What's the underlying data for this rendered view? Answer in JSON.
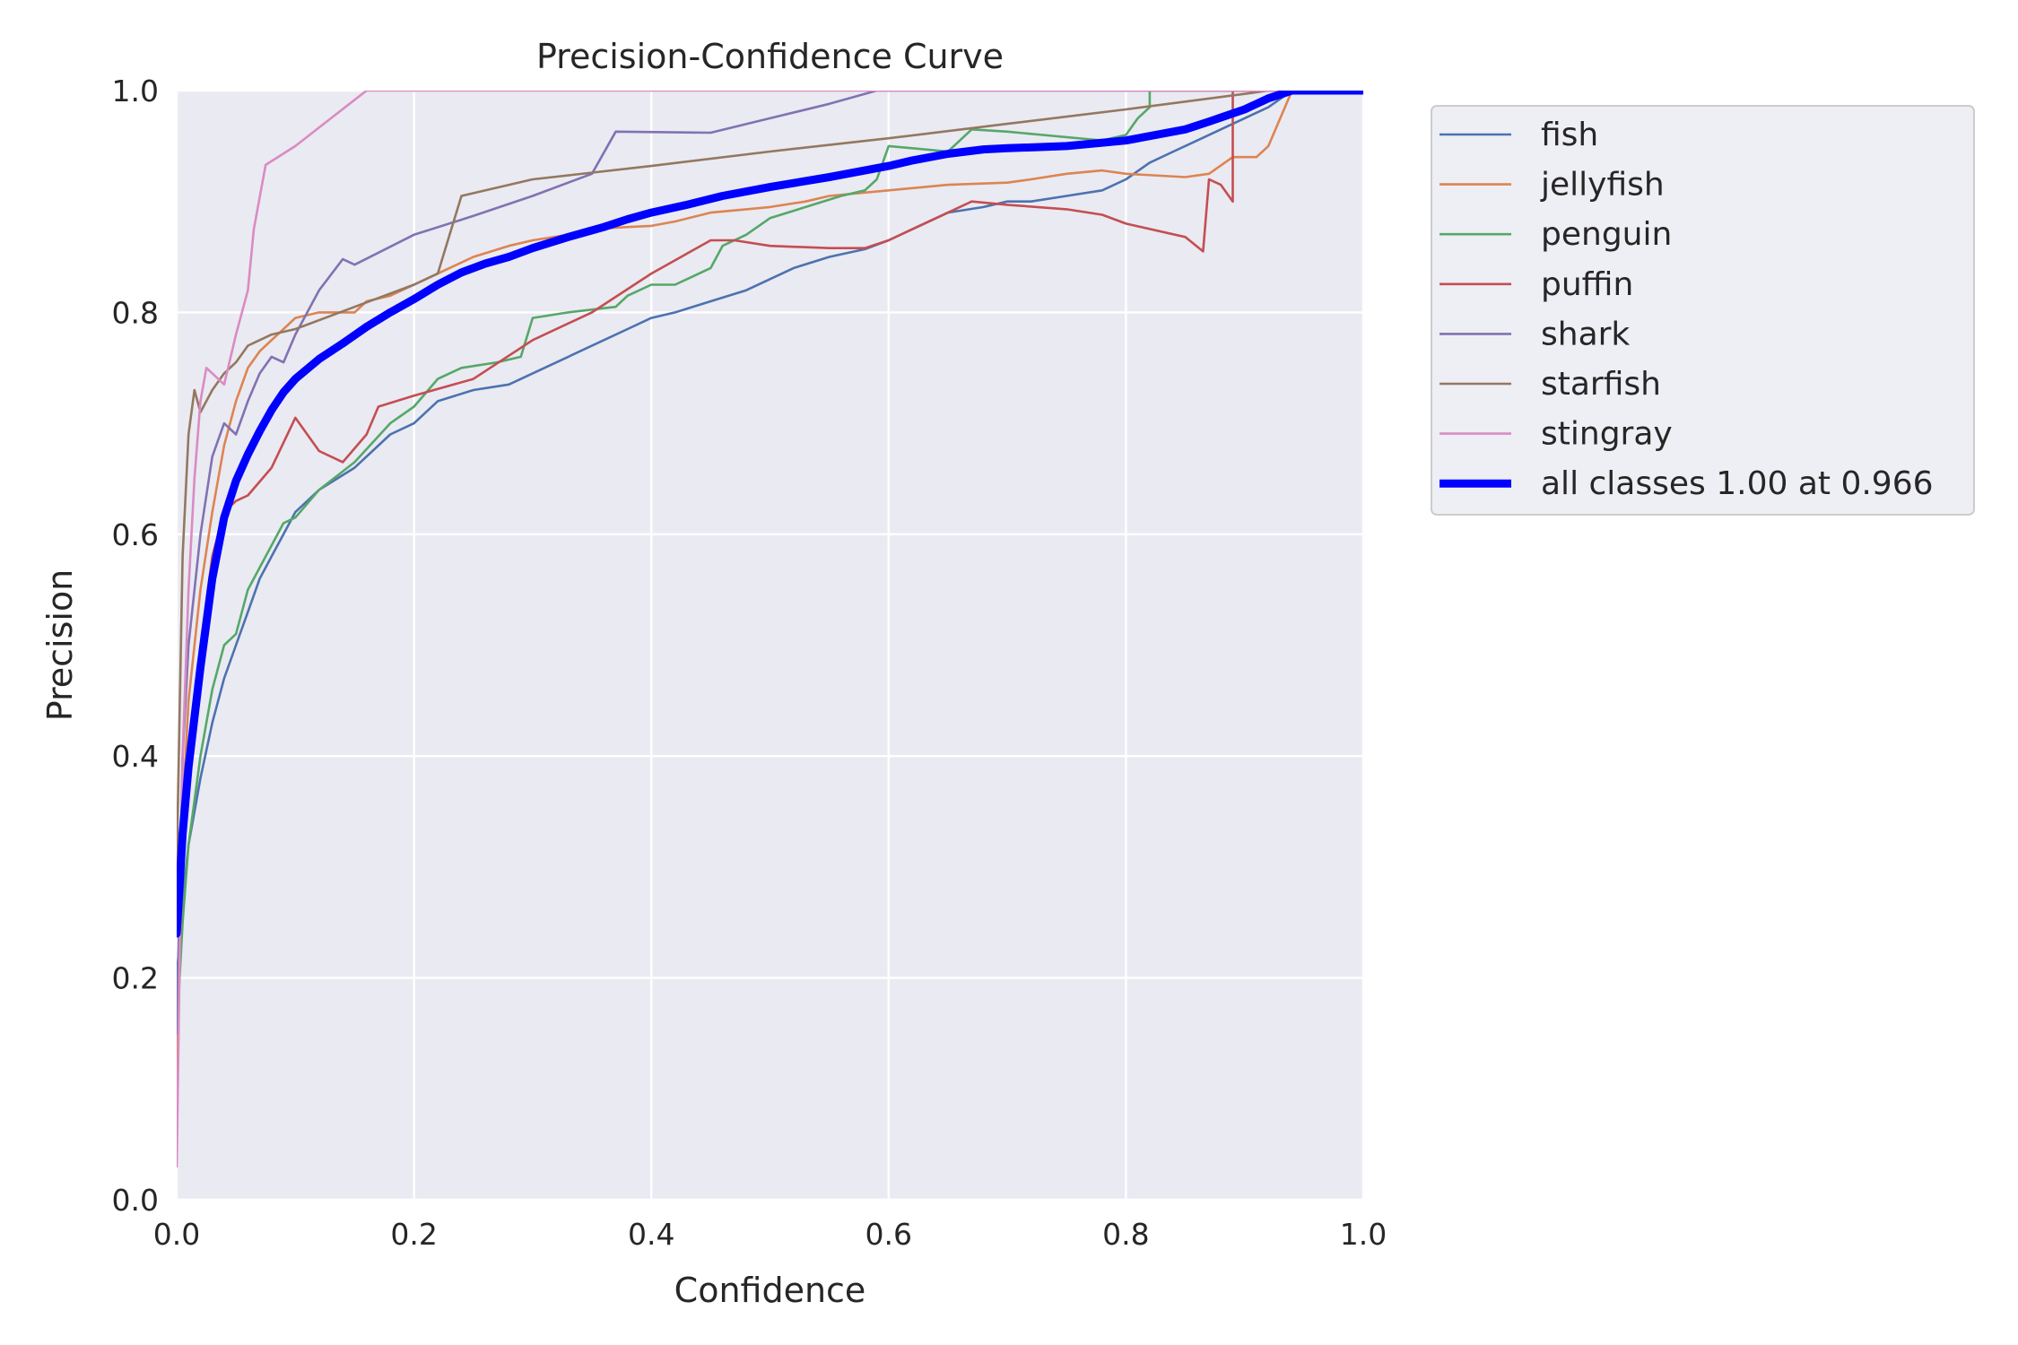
{
  "chart_data": {
    "type": "line",
    "title": "Precision-Confidence Curve",
    "xlabel": "Confidence",
    "ylabel": "Precision",
    "xlim": [
      0,
      1
    ],
    "ylim": [
      0,
      1
    ],
    "grid": true,
    "legend_position": "outside-right-top",
    "x_ticks": [
      "0.0",
      "0.2",
      "0.4",
      "0.6",
      "0.8",
      "1.0"
    ],
    "y_ticks": [
      "0.0",
      "0.2",
      "0.4",
      "0.6",
      "0.8",
      "1.0"
    ],
    "background_color": "#eaeaf2",
    "grid_color": "#ffffff",
    "series": [
      {
        "name": "fish",
        "color": "#4c72b0",
        "line": "thin",
        "points": [
          [
            0,
            0.2
          ],
          [
            0.005,
            0.27
          ],
          [
            0.01,
            0.32
          ],
          [
            0.02,
            0.38
          ],
          [
            0.03,
            0.43
          ],
          [
            0.04,
            0.47
          ],
          [
            0.05,
            0.5
          ],
          [
            0.06,
            0.53
          ],
          [
            0.07,
            0.56
          ],
          [
            0.08,
            0.58
          ],
          [
            0.09,
            0.6
          ],
          [
            0.1,
            0.62
          ],
          [
            0.12,
            0.64
          ],
          [
            0.15,
            0.66
          ],
          [
            0.18,
            0.69
          ],
          [
            0.2,
            0.7
          ],
          [
            0.22,
            0.72
          ],
          [
            0.25,
            0.73
          ],
          [
            0.28,
            0.735
          ],
          [
            0.3,
            0.745
          ],
          [
            0.33,
            0.76
          ],
          [
            0.36,
            0.775
          ],
          [
            0.38,
            0.785
          ],
          [
            0.4,
            0.795
          ],
          [
            0.42,
            0.8
          ],
          [
            0.45,
            0.81
          ],
          [
            0.48,
            0.82
          ],
          [
            0.5,
            0.83
          ],
          [
            0.52,
            0.84
          ],
          [
            0.55,
            0.85
          ],
          [
            0.58,
            0.857
          ],
          [
            0.6,
            0.865
          ],
          [
            0.62,
            0.875
          ],
          [
            0.65,
            0.89
          ],
          [
            0.68,
            0.895
          ],
          [
            0.7,
            0.9
          ],
          [
            0.72,
            0.9
          ],
          [
            0.75,
            0.905
          ],
          [
            0.78,
            0.91
          ],
          [
            0.8,
            0.92
          ],
          [
            0.82,
            0.935
          ],
          [
            0.84,
            0.945
          ],
          [
            0.86,
            0.955
          ],
          [
            0.88,
            0.965
          ],
          [
            0.9,
            0.975
          ],
          [
            0.92,
            0.985
          ],
          [
            0.94,
            1.0
          ],
          [
            1.0,
            1.0
          ]
        ]
      },
      {
        "name": "jellyfish",
        "color": "#dd8452",
        "line": "thin",
        "points": [
          [
            0,
            0.1
          ],
          [
            0.005,
            0.35
          ],
          [
            0.01,
            0.45
          ],
          [
            0.02,
            0.55
          ],
          [
            0.03,
            0.62
          ],
          [
            0.04,
            0.68
          ],
          [
            0.05,
            0.72
          ],
          [
            0.06,
            0.75
          ],
          [
            0.07,
            0.765
          ],
          [
            0.08,
            0.775
          ],
          [
            0.09,
            0.785
          ],
          [
            0.1,
            0.795
          ],
          [
            0.12,
            0.8
          ],
          [
            0.15,
            0.8
          ],
          [
            0.16,
            0.81
          ],
          [
            0.18,
            0.815
          ],
          [
            0.2,
            0.825
          ],
          [
            0.22,
            0.835
          ],
          [
            0.25,
            0.85
          ],
          [
            0.28,
            0.86
          ],
          [
            0.3,
            0.865
          ],
          [
            0.33,
            0.87
          ],
          [
            0.35,
            0.875
          ],
          [
            0.38,
            0.877
          ],
          [
            0.4,
            0.878
          ],
          [
            0.42,
            0.882
          ],
          [
            0.45,
            0.89
          ],
          [
            0.48,
            0.893
          ],
          [
            0.5,
            0.895
          ],
          [
            0.53,
            0.9
          ],
          [
            0.55,
            0.905
          ],
          [
            0.6,
            0.91
          ],
          [
            0.65,
            0.915
          ],
          [
            0.7,
            0.917
          ],
          [
            0.72,
            0.92
          ],
          [
            0.75,
            0.925
          ],
          [
            0.78,
            0.928
          ],
          [
            0.8,
            0.925
          ],
          [
            0.85,
            0.922
          ],
          [
            0.87,
            0.925
          ],
          [
            0.89,
            0.94
          ],
          [
            0.91,
            0.94
          ],
          [
            0.92,
            0.95
          ],
          [
            0.93,
            0.975
          ],
          [
            0.94,
            1.0
          ],
          [
            1.0,
            1.0
          ]
        ]
      },
      {
        "name": "penguin",
        "color": "#55a868",
        "line": "thin",
        "points": [
          [
            0,
            0.15
          ],
          [
            0.005,
            0.25
          ],
          [
            0.01,
            0.32
          ],
          [
            0.02,
            0.4
          ],
          [
            0.03,
            0.46
          ],
          [
            0.04,
            0.5
          ],
          [
            0.05,
            0.51
          ],
          [
            0.06,
            0.55
          ],
          [
            0.07,
            0.57
          ],
          [
            0.08,
            0.59
          ],
          [
            0.09,
            0.61
          ],
          [
            0.1,
            0.615
          ],
          [
            0.12,
            0.64
          ],
          [
            0.15,
            0.665
          ],
          [
            0.18,
            0.7
          ],
          [
            0.2,
            0.715
          ],
          [
            0.22,
            0.74
          ],
          [
            0.24,
            0.75
          ],
          [
            0.27,
            0.755
          ],
          [
            0.29,
            0.76
          ],
          [
            0.3,
            0.795
          ],
          [
            0.33,
            0.8
          ],
          [
            0.37,
            0.805
          ],
          [
            0.38,
            0.815
          ],
          [
            0.4,
            0.825
          ],
          [
            0.42,
            0.825
          ],
          [
            0.45,
            0.84
          ],
          [
            0.46,
            0.86
          ],
          [
            0.48,
            0.87
          ],
          [
            0.5,
            0.885
          ],
          [
            0.53,
            0.895
          ],
          [
            0.56,
            0.905
          ],
          [
            0.58,
            0.91
          ],
          [
            0.59,
            0.92
          ],
          [
            0.6,
            0.95
          ],
          [
            0.65,
            0.945
          ],
          [
            0.67,
            0.965
          ],
          [
            0.7,
            0.963
          ],
          [
            0.73,
            0.96
          ],
          [
            0.78,
            0.955
          ],
          [
            0.8,
            0.96
          ],
          [
            0.81,
            0.975
          ],
          [
            0.82,
            0.985
          ],
          [
            0.82,
            1.0
          ],
          [
            1.0,
            1.0
          ]
        ]
      },
      {
        "name": "puffin",
        "color": "#c44e52",
        "line": "thin",
        "points": [
          [
            0,
            0.15
          ],
          [
            0.005,
            0.3
          ],
          [
            0.01,
            0.4
          ],
          [
            0.02,
            0.5
          ],
          [
            0.03,
            0.58
          ],
          [
            0.04,
            0.62
          ],
          [
            0.05,
            0.63
          ],
          [
            0.06,
            0.635
          ],
          [
            0.08,
            0.66
          ],
          [
            0.1,
            0.705
          ],
          [
            0.12,
            0.675
          ],
          [
            0.14,
            0.665
          ],
          [
            0.16,
            0.69
          ],
          [
            0.17,
            0.715
          ],
          [
            0.2,
            0.725
          ],
          [
            0.25,
            0.74
          ],
          [
            0.3,
            0.775
          ],
          [
            0.35,
            0.8
          ],
          [
            0.4,
            0.835
          ],
          [
            0.45,
            0.865
          ],
          [
            0.47,
            0.865
          ],
          [
            0.5,
            0.86
          ],
          [
            0.55,
            0.858
          ],
          [
            0.58,
            0.858
          ],
          [
            0.6,
            0.865
          ],
          [
            0.62,
            0.875
          ],
          [
            0.65,
            0.89
          ],
          [
            0.67,
            0.9
          ],
          [
            0.7,
            0.897
          ],
          [
            0.75,
            0.893
          ],
          [
            0.78,
            0.888
          ],
          [
            0.8,
            0.88
          ],
          [
            0.85,
            0.868
          ],
          [
            0.865,
            0.855
          ],
          [
            0.87,
            0.92
          ],
          [
            0.88,
            0.915
          ],
          [
            0.89,
            0.9
          ],
          [
            0.89,
            1.0
          ],
          [
            1.0,
            1.0
          ]
        ]
      },
      {
        "name": "shark",
        "color": "#8172b3",
        "line": "thin",
        "points": [
          [
            0,
            0.15
          ],
          [
            0.005,
            0.4
          ],
          [
            0.01,
            0.5
          ],
          [
            0.02,
            0.6
          ],
          [
            0.03,
            0.67
          ],
          [
            0.04,
            0.7
          ],
          [
            0.05,
            0.69
          ],
          [
            0.06,
            0.72
          ],
          [
            0.07,
            0.745
          ],
          [
            0.08,
            0.76
          ],
          [
            0.09,
            0.755
          ],
          [
            0.1,
            0.78
          ],
          [
            0.12,
            0.82
          ],
          [
            0.14,
            0.848
          ],
          [
            0.15,
            0.843
          ],
          [
            0.2,
            0.87
          ],
          [
            0.25,
            0.887
          ],
          [
            0.3,
            0.905
          ],
          [
            0.35,
            0.925
          ],
          [
            0.37,
            0.963
          ],
          [
            0.45,
            0.962
          ],
          [
            0.5,
            0.975
          ],
          [
            0.55,
            0.988
          ],
          [
            0.59,
            1.0
          ],
          [
            1.0,
            1.0
          ]
        ]
      },
      {
        "name": "starfish",
        "color": "#937860",
        "line": "thin",
        "points": [
          [
            0,
            0.3
          ],
          [
            0.005,
            0.58
          ],
          [
            0.01,
            0.69
          ],
          [
            0.015,
            0.73
          ],
          [
            0.02,
            0.71
          ],
          [
            0.03,
            0.73
          ],
          [
            0.04,
            0.745
          ],
          [
            0.05,
            0.755
          ],
          [
            0.06,
            0.77
          ],
          [
            0.08,
            0.78
          ],
          [
            0.1,
            0.785
          ],
          [
            0.15,
            0.805
          ],
          [
            0.2,
            0.825
          ],
          [
            0.22,
            0.835
          ],
          [
            0.24,
            0.905
          ],
          [
            0.3,
            0.92
          ],
          [
            0.4,
            0.932
          ],
          [
            0.5,
            0.945
          ],
          [
            0.6,
            0.957
          ],
          [
            0.7,
            0.97
          ],
          [
            0.8,
            0.983
          ],
          [
            0.9,
            0.997
          ],
          [
            0.92,
            1.0
          ],
          [
            1.0,
            1.0
          ]
        ]
      },
      {
        "name": "stingray",
        "color": "#da8bc3",
        "line": "thin",
        "points": [
          [
            0,
            0.03
          ],
          [
            0.005,
            0.4
          ],
          [
            0.01,
            0.55
          ],
          [
            0.015,
            0.65
          ],
          [
            0.02,
            0.72
          ],
          [
            0.025,
            0.75
          ],
          [
            0.03,
            0.745
          ],
          [
            0.035,
            0.74
          ],
          [
            0.04,
            0.735
          ],
          [
            0.05,
            0.78
          ],
          [
            0.06,
            0.82
          ],
          [
            0.065,
            0.875
          ],
          [
            0.075,
            0.933
          ],
          [
            0.1,
            0.95
          ],
          [
            0.13,
            0.975
          ],
          [
            0.16,
            1.0
          ],
          [
            1.0,
            1.0
          ]
        ]
      },
      {
        "name": "all classes 1.00 at 0.966",
        "color": "#0000ff",
        "line": "thick",
        "points": [
          [
            0,
            0.24
          ],
          [
            0.005,
            0.33
          ],
          [
            0.01,
            0.39
          ],
          [
            0.02,
            0.48
          ],
          [
            0.03,
            0.56
          ],
          [
            0.04,
            0.615
          ],
          [
            0.05,
            0.648
          ],
          [
            0.06,
            0.672
          ],
          [
            0.07,
            0.693
          ],
          [
            0.08,
            0.712
          ],
          [
            0.09,
            0.728
          ],
          [
            0.1,
            0.74
          ],
          [
            0.12,
            0.758
          ],
          [
            0.14,
            0.772
          ],
          [
            0.16,
            0.787
          ],
          [
            0.18,
            0.8
          ],
          [
            0.2,
            0.812
          ],
          [
            0.22,
            0.825
          ],
          [
            0.24,
            0.836
          ],
          [
            0.26,
            0.844
          ],
          [
            0.28,
            0.85
          ],
          [
            0.3,
            0.858
          ],
          [
            0.33,
            0.868
          ],
          [
            0.36,
            0.877
          ],
          [
            0.38,
            0.884
          ],
          [
            0.4,
            0.89
          ],
          [
            0.43,
            0.897
          ],
          [
            0.46,
            0.905
          ],
          [
            0.5,
            0.913
          ],
          [
            0.55,
            0.922
          ],
          [
            0.6,
            0.932
          ],
          [
            0.62,
            0.937
          ],
          [
            0.65,
            0.943
          ],
          [
            0.68,
            0.947
          ],
          [
            0.7,
            0.948
          ],
          [
            0.75,
            0.95
          ],
          [
            0.8,
            0.955
          ],
          [
            0.85,
            0.965
          ],
          [
            0.87,
            0.972
          ],
          [
            0.9,
            0.983
          ],
          [
            0.92,
            0.993
          ],
          [
            0.94,
            1.0
          ],
          [
            1.0,
            1.0
          ]
        ]
      }
    ]
  }
}
